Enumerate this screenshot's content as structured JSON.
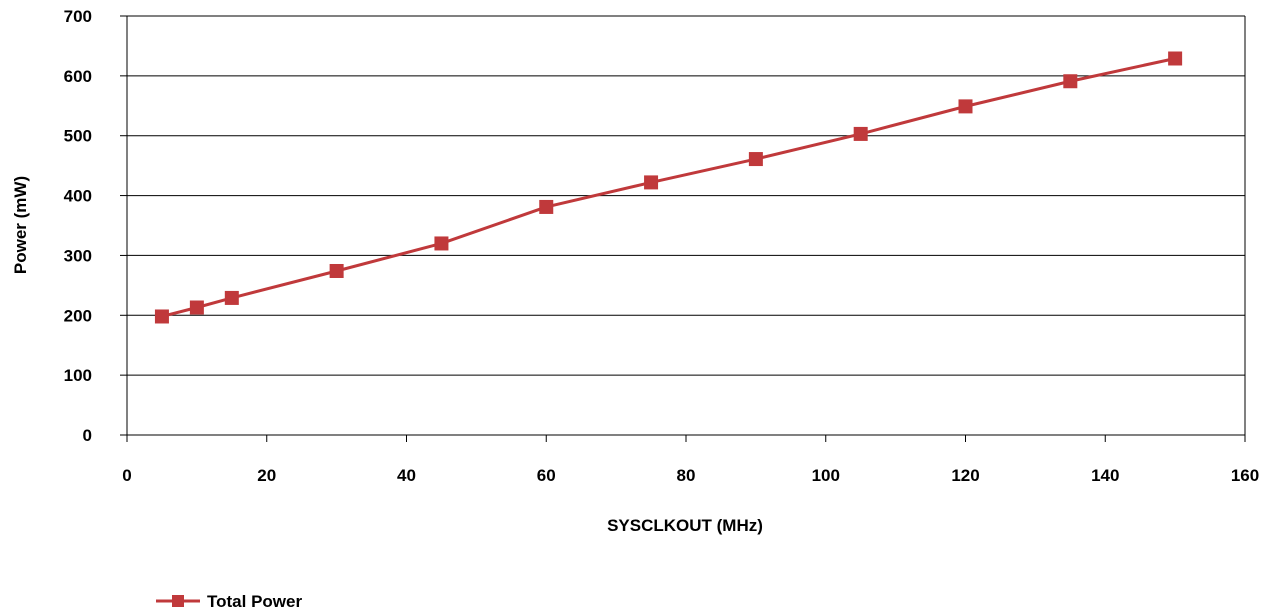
{
  "chart_data": {
    "type": "line",
    "title": "",
    "xlabel": "SYSCLKOUT (MHz)",
    "ylabel": "Power (mW)",
    "xlim": [
      0,
      160
    ],
    "ylim": [
      0,
      700
    ],
    "x_ticks": [
      0,
      20,
      40,
      60,
      80,
      100,
      120,
      140,
      160
    ],
    "y_ticks": [
      0,
      100,
      200,
      300,
      400,
      500,
      600,
      700
    ],
    "grid": "horizontal",
    "legend_position": "bottom-left",
    "series": [
      {
        "name": "Total Power",
        "color": "#c0393b",
        "marker": "square",
        "x": [
          5,
          10,
          15,
          30,
          45,
          60,
          75,
          90,
          105,
          120,
          135,
          150
        ],
        "y": [
          198,
          213,
          229,
          274,
          320,
          381,
          422,
          461,
          503,
          549,
          591,
          629
        ]
      }
    ]
  }
}
